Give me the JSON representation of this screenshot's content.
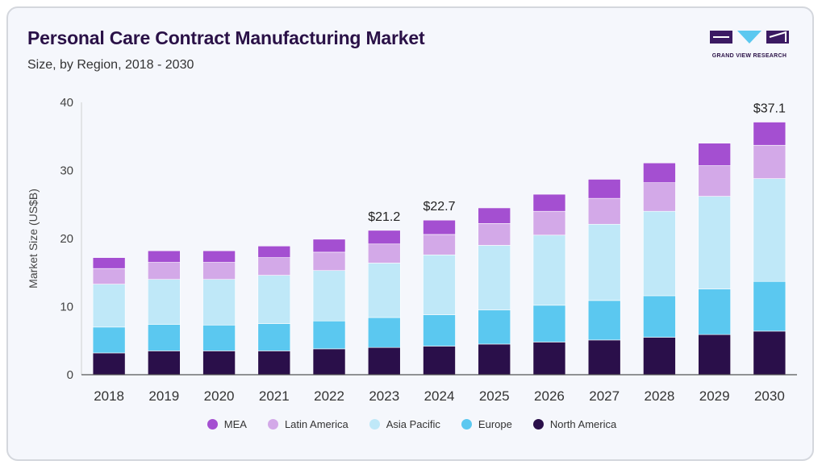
{
  "header": {
    "title": "Personal Care Contract Manufacturing Market",
    "subtitle": "Size, by Region, 2018 - 2030"
  },
  "logo": {
    "text": "GRAND VIEW RESEARCH",
    "icon": "grand-view-research-logo"
  },
  "chart_data": {
    "type": "bar",
    "stacked": true,
    "categories": [
      "2018",
      "2019",
      "2020",
      "2021",
      "2022",
      "2023",
      "2024",
      "2025",
      "2026",
      "2027",
      "2028",
      "2029",
      "2030"
    ],
    "series": [
      {
        "name": "North America",
        "color": "#2a0f4a",
        "values": [
          3.2,
          3.5,
          3.5,
          3.5,
          3.8,
          4.0,
          4.2,
          4.5,
          4.8,
          5.1,
          5.5,
          5.9,
          6.4
        ]
      },
      {
        "name": "Europe",
        "color": "#5bc8f0",
        "values": [
          3.8,
          3.9,
          3.8,
          4.0,
          4.1,
          4.4,
          4.6,
          5.0,
          5.4,
          5.8,
          6.1,
          6.7,
          7.3
        ]
      },
      {
        "name": "Asia Pacific",
        "color": "#bfe8f8",
        "values": [
          6.3,
          6.6,
          6.7,
          7.1,
          7.4,
          8.0,
          8.8,
          9.5,
          10.3,
          11.2,
          12.4,
          13.6,
          15.1
        ]
      },
      {
        "name": "Latin America",
        "color": "#d3a9e8",
        "values": [
          2.3,
          2.5,
          2.5,
          2.6,
          2.7,
          2.8,
          3.0,
          3.2,
          3.5,
          3.8,
          4.2,
          4.5,
          4.9
        ]
      },
      {
        "name": "MEA",
        "color": "#a44fd1",
        "values": [
          1.6,
          1.7,
          1.7,
          1.7,
          1.9,
          2.0,
          2.1,
          2.3,
          2.5,
          2.8,
          2.9,
          3.3,
          3.4
        ]
      }
    ],
    "ylabel": "Market Size (US$B)",
    "ylim": [
      0,
      40
    ],
    "yticks": [
      "0",
      "10",
      "20",
      "30",
      "40"
    ],
    "annotations": [
      {
        "category": "2023",
        "label": "$21.2",
        "value": 21.2
      },
      {
        "category": "2024",
        "label": "$22.7",
        "value": 22.7
      },
      {
        "category": "2030",
        "label": "$37.1",
        "value": 37.1
      }
    ],
    "legend_order": [
      "MEA",
      "Latin America",
      "Asia Pacific",
      "Europe",
      "North America"
    ],
    "legend_position": "bottom",
    "grid": false
  }
}
